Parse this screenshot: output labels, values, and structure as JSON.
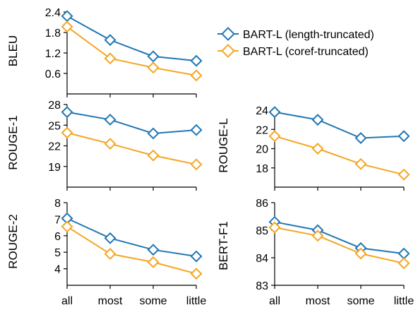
{
  "chart_data": [
    {
      "type": "line",
      "id": "bleu",
      "ylabel": "BLEU",
      "categories": [
        "all",
        "most",
        "some",
        "little"
      ],
      "ylim": [
        0,
        2.4
      ],
      "yticks": [
        "0.6",
        "1.2",
        "1.8",
        "2.4"
      ],
      "series": [
        {
          "name": "BART-L (length-truncated)",
          "color": "#1f77b4",
          "values": [
            2.28,
            1.58,
            1.1,
            0.97
          ]
        },
        {
          "name": "BART-L (coref-truncated)",
          "color": "#f5a623",
          "values": [
            1.97,
            1.04,
            0.77,
            0.54
          ]
        }
      ]
    },
    {
      "type": "line",
      "id": "rouge1",
      "ylabel": "ROUGE-1",
      "categories": [
        "all",
        "most",
        "some",
        "little"
      ],
      "ylim": [
        16,
        28
      ],
      "yticks": [
        "19",
        "22",
        "25",
        "28"
      ],
      "series": [
        {
          "name": "BART-L (length-truncated)",
          "color": "#1f77b4",
          "values": [
            26.9,
            25.8,
            23.8,
            24.3
          ]
        },
        {
          "name": "BART-L (coref-truncated)",
          "color": "#f5a623",
          "values": [
            23.9,
            22.3,
            20.6,
            19.3
          ]
        }
      ]
    },
    {
      "type": "line",
      "id": "rouge2",
      "ylabel": "ROUGE-2",
      "categories": [
        "all",
        "most",
        "some",
        "little"
      ],
      "ylim": [
        3,
        8
      ],
      "yticks": [
        "4",
        "5",
        "6",
        "7",
        "8"
      ],
      "series": [
        {
          "name": "BART-L (length-truncated)",
          "color": "#1f77b4",
          "values": [
            7.05,
            5.85,
            5.15,
            4.75
          ]
        },
        {
          "name": "BART-L (coref-truncated)",
          "color": "#f5a623",
          "values": [
            6.55,
            4.9,
            4.4,
            3.7
          ]
        }
      ]
    },
    {
      "type": "line",
      "id": "rougel",
      "ylabel": "ROUGE-L",
      "categories": [
        "all",
        "most",
        "some",
        "little"
      ],
      "ylim": [
        16,
        24
      ],
      "yticks": [
        "18",
        "20",
        "22",
        "24"
      ],
      "series": [
        {
          "name": "BART-L (length-truncated)",
          "color": "#1f77b4",
          "values": [
            23.8,
            23.0,
            21.1,
            21.3
          ]
        },
        {
          "name": "BART-L (coref-truncated)",
          "color": "#f5a623",
          "values": [
            21.3,
            20.0,
            18.4,
            17.3
          ]
        }
      ]
    },
    {
      "type": "line",
      "id": "bertf1",
      "ylabel": "BERT-F1",
      "categories": [
        "all",
        "most",
        "some",
        "little"
      ],
      "ylim": [
        83,
        86
      ],
      "yticks": [
        "83",
        "84",
        "85",
        "86"
      ],
      "series": [
        {
          "name": "BART-L (length-truncated)",
          "color": "#1f77b4",
          "values": [
            85.3,
            85.0,
            84.35,
            84.15
          ]
        },
        {
          "name": "BART-L (coref-truncated)",
          "color": "#f5a623",
          "values": [
            85.1,
            84.8,
            84.15,
            83.8
          ]
        }
      ]
    }
  ],
  "legend": {
    "items": [
      {
        "label": "BART-L (length-truncated)",
        "color": "#1f77b4"
      },
      {
        "label": "BART-L (coref-truncated)",
        "color": "#f5a623"
      }
    ]
  }
}
